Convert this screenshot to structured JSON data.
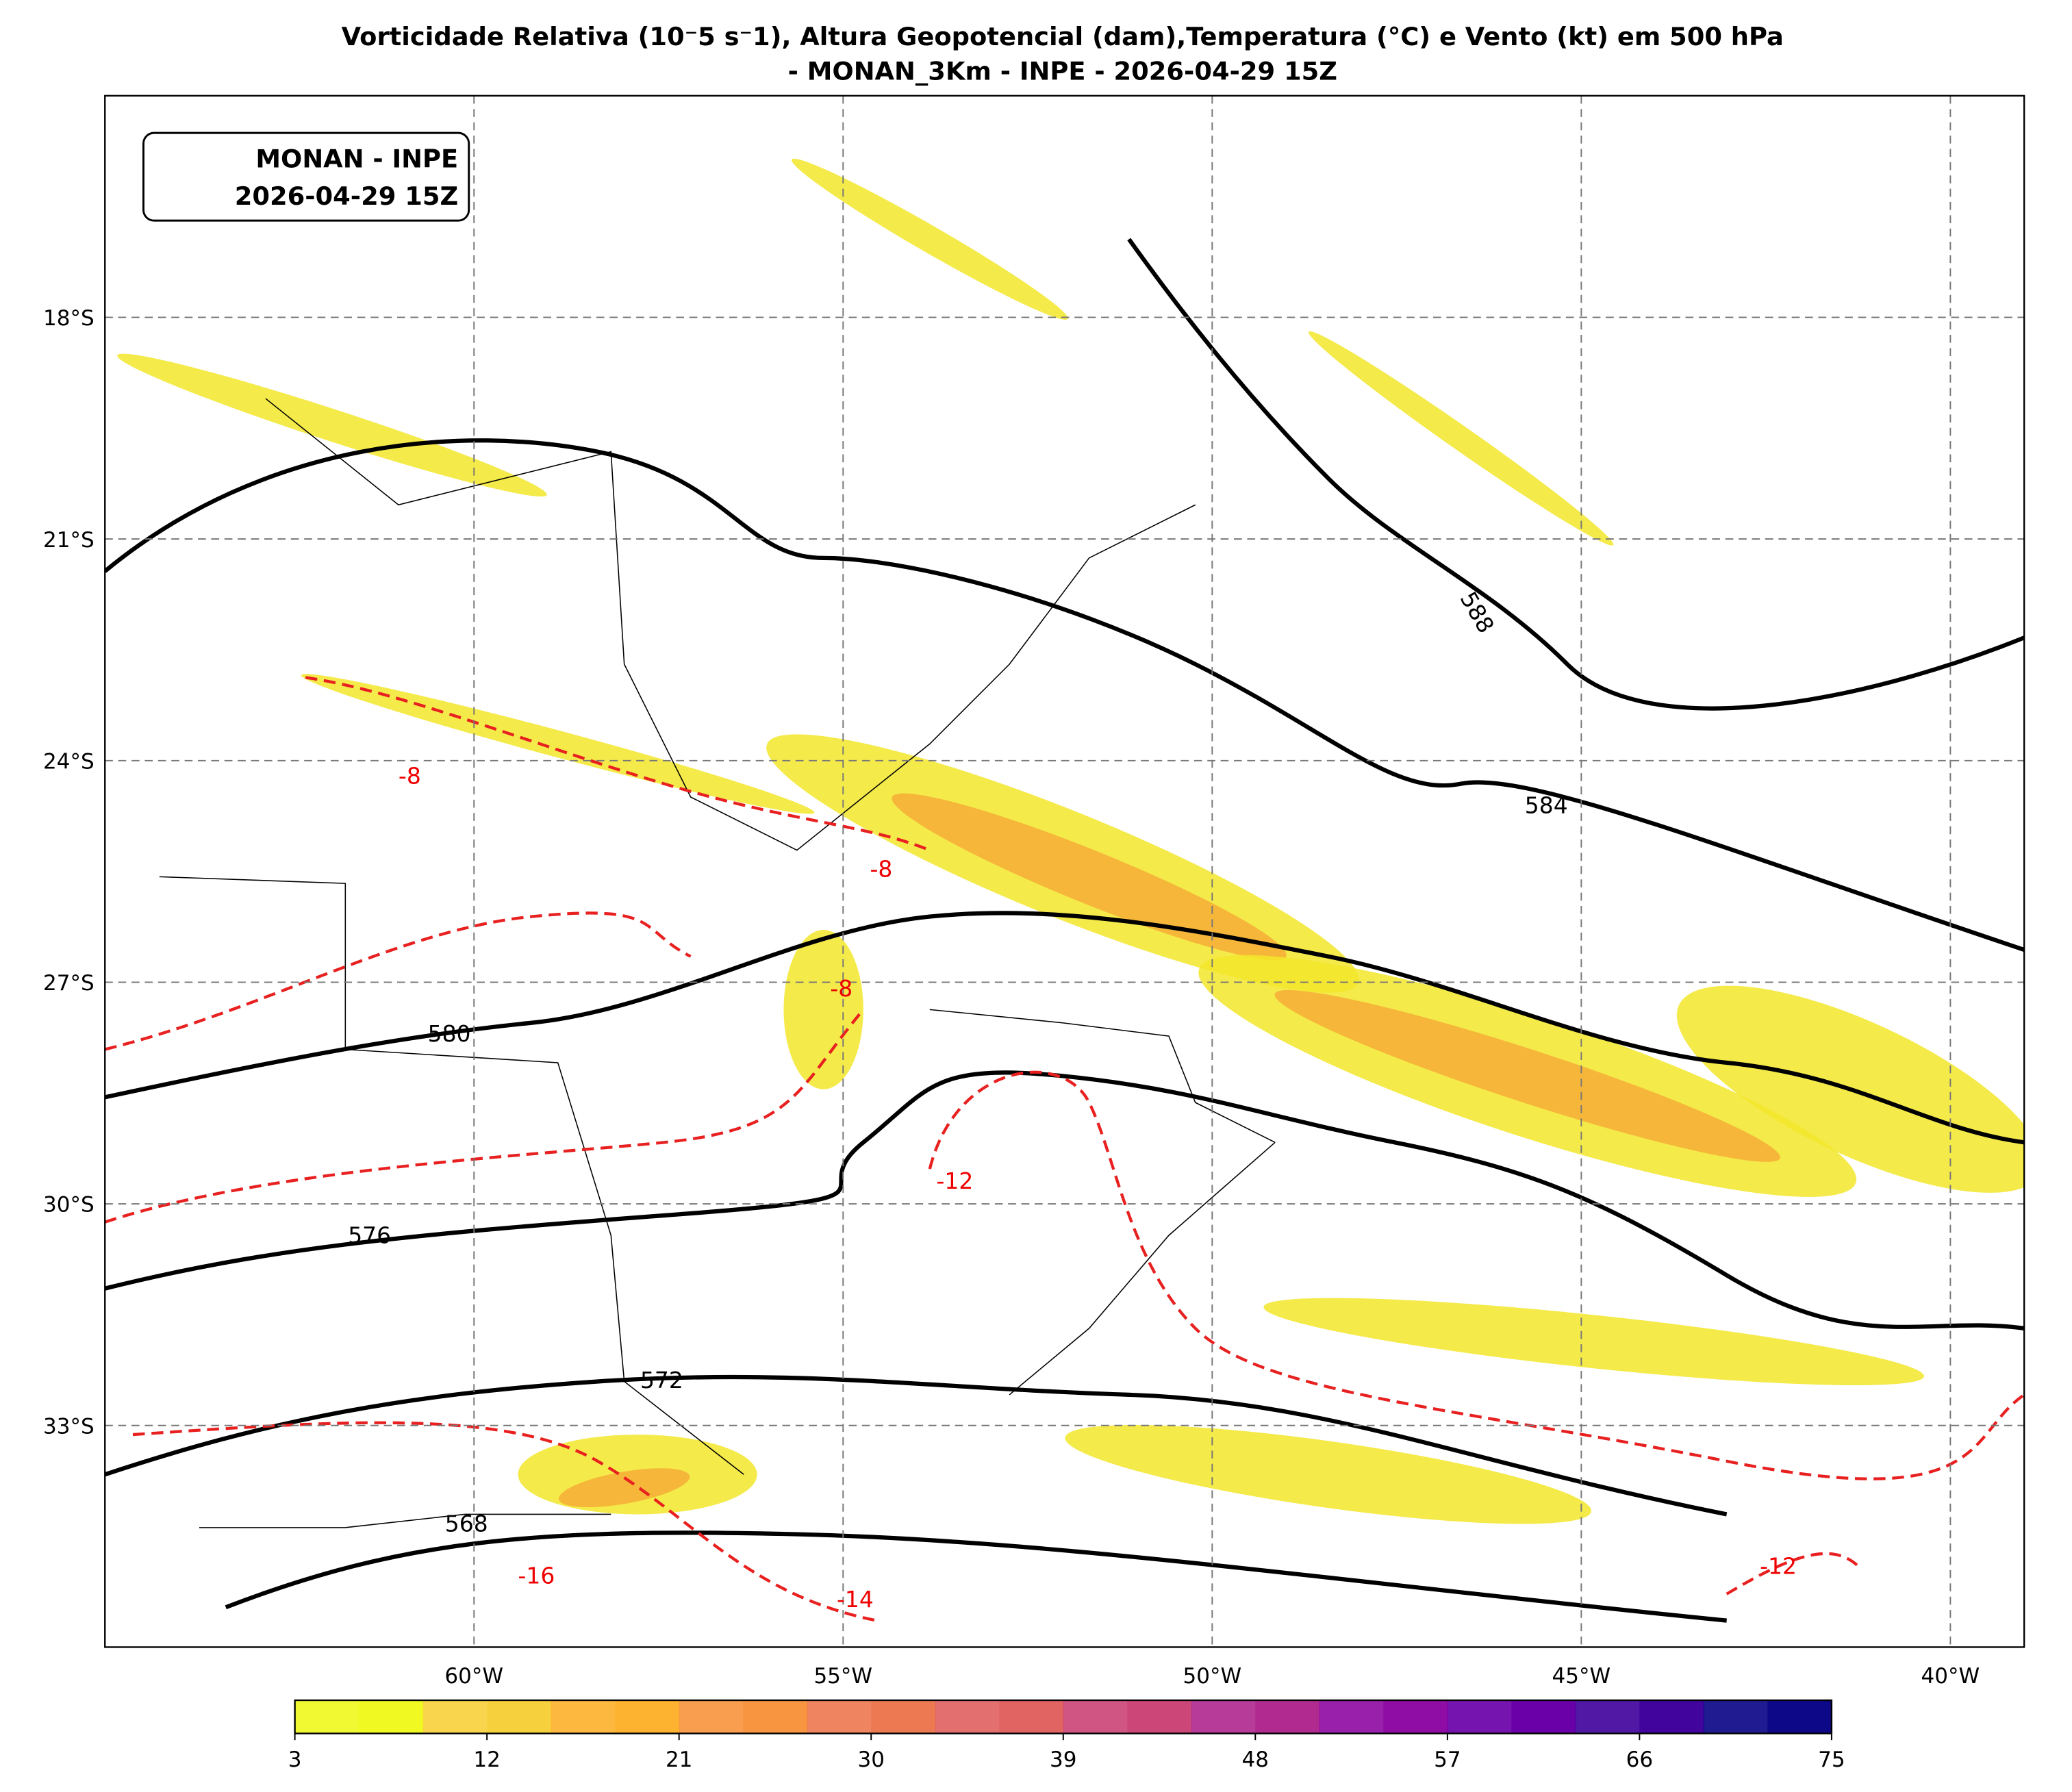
{
  "map": {
    "title_line1": "Vorticidade Relativa (10⁻5 s⁻1), Altura Geopotencial (dam),Temperatura (°C) e Vento (kt) em 500 hPa",
    "title_line2": "- MONAN_3Km - INPE - 2026-04-29 15Z",
    "info_box": [
      "MONAN - INPE",
      "2026-04-29 15Z"
    ],
    "xlim": [
      -65,
      -39
    ],
    "ylim": [
      -36,
      -15
    ],
    "lon_ticks": [
      {
        "value": -60,
        "label": "60°W"
      },
      {
        "value": -55,
        "label": "55°W"
      },
      {
        "value": -50,
        "label": "50°W"
      },
      {
        "value": -45,
        "label": "45°W"
      },
      {
        "value": -40,
        "label": "40°W"
      }
    ],
    "lat_ticks": [
      {
        "value": -18,
        "label": "18°S"
      },
      {
        "value": -21,
        "label": "21°S"
      },
      {
        "value": -24,
        "label": "24°S"
      },
      {
        "value": -27,
        "label": "27°S"
      },
      {
        "value": -30,
        "label": "30°S"
      },
      {
        "value": -33,
        "label": "33°S"
      }
    ],
    "height_labels": [
      "588",
      "584",
      "580",
      "576",
      "572",
      "568"
    ],
    "temperature_labels": [
      "-8",
      "-8",
      "-8",
      "-12",
      "-16",
      "-14",
      "-12"
    ],
    "colorbar": {
      "lim": [
        3,
        75
      ],
      "ticks": [
        3,
        12,
        21,
        30,
        39,
        48,
        57,
        66,
        75
      ],
      "colors": [
        "#f0f921",
        "#f7d13d",
        "#fdb32f",
        "#f89540",
        "#ed7953",
        "#e16462",
        "#cc4778",
        "#b12a90",
        "#8f0da4",
        "#6a00a8",
        "#41049d",
        "#0d0887"
      ]
    }
  }
}
